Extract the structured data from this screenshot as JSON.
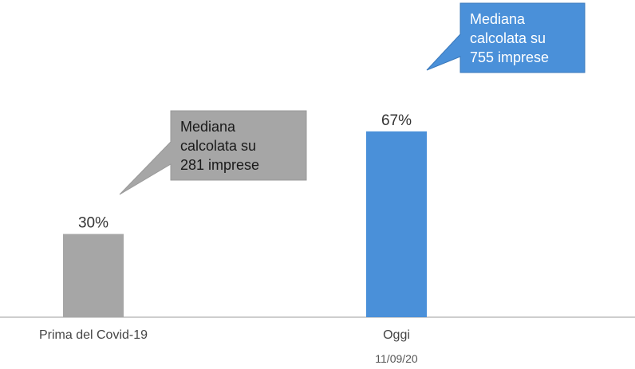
{
  "chart_data": {
    "type": "bar",
    "title": "",
    "xlabel": "",
    "ylabel": "",
    "ylim": [
      0,
      100
    ],
    "grid": false,
    "categories": [
      "Prima del Covid-19",
      "Oggi"
    ],
    "sublabels": [
      "",
      "11/09/20"
    ],
    "values": [
      30,
      67
    ],
    "value_labels": [
      "30%",
      "67%"
    ],
    "colors": [
      "#a6a6a6",
      "#4a90d9"
    ],
    "annotations": [
      {
        "target": "Prima del Covid-19",
        "lines": [
          "Mediana",
          "calcolata su",
          "281 imprese"
        ],
        "fill": "#a6a6a6",
        "text_color": "#1a1a1a"
      },
      {
        "target": "Oggi",
        "lines": [
          "Mediana",
          "calcolata su",
          "755 imprese"
        ],
        "fill": "#4a90d9",
        "text_color": "#ffffff"
      }
    ]
  }
}
